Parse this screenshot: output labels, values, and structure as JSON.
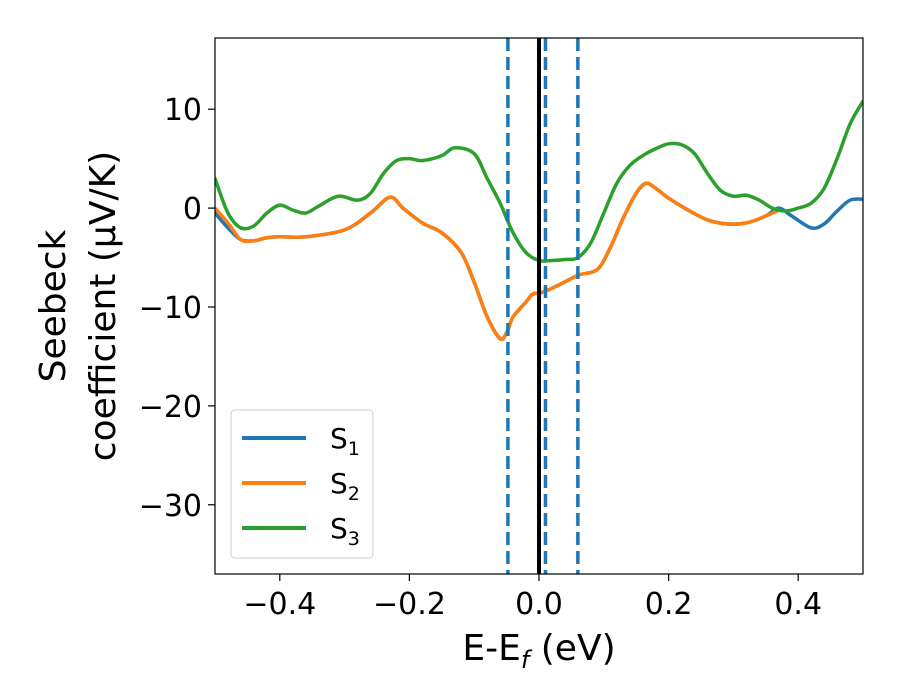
{
  "chart_data": {
    "type": "line",
    "xlabel": "E-E",
    "xlabel_sub": "f",
    "xlabel_unit": " (eV)",
    "ylabel_line1": "Seebeck",
    "ylabel_line2": "coefficient  (μV/K)",
    "xlim": [
      -0.5,
      0.5
    ],
    "ylim": [
      -37,
      17.2
    ],
    "x_ticks": [
      -0.4,
      -0.2,
      0.0,
      0.2,
      0.4
    ],
    "x_tick_labels": [
      "−0.4",
      "−0.2",
      "0.0",
      "0.2",
      "0.4"
    ],
    "y_ticks": [
      10,
      0,
      -10,
      -20,
      -30
    ],
    "y_tick_labels": [
      "10",
      "0",
      "−10",
      "−20",
      "−30"
    ],
    "legend_position": "lower-left",
    "vlines": [
      {
        "x": -0.048,
        "style": "dashed",
        "color": "#1f77b4"
      },
      {
        "x": 0.0,
        "style": "solid",
        "color": "#000000"
      },
      {
        "x": 0.01,
        "style": "dashed",
        "color": "#1f77b4"
      },
      {
        "x": 0.06,
        "style": "dashed",
        "color": "#1f77b4"
      }
    ],
    "series": [
      {
        "label_main": "S",
        "label_sub": "1",
        "color": "#1f77b4",
        "points": [
          [
            -0.5,
            -0.5
          ],
          [
            -0.48,
            -2
          ],
          [
            -0.46,
            -3.2
          ],
          [
            -0.44,
            -3.3
          ],
          [
            -0.42,
            -3
          ],
          [
            -0.4,
            -2.9
          ],
          [
            -0.36,
            -2.9
          ],
          [
            -0.3,
            -2.2
          ],
          [
            -0.26,
            -0.5
          ],
          [
            -0.23,
            1.1
          ],
          [
            -0.21,
            0
          ],
          [
            -0.18,
            -1.5
          ],
          [
            -0.15,
            -2.5
          ],
          [
            -0.12,
            -4.5
          ],
          [
            -0.1,
            -7.5
          ],
          [
            -0.08,
            -11
          ],
          [
            -0.06,
            -13.2
          ],
          [
            -0.05,
            -12.6
          ],
          [
            -0.04,
            -11
          ],
          [
            -0.02,
            -9.5
          ],
          [
            -0.01,
            -8.7
          ],
          [
            0,
            -8.6
          ],
          [
            0.01,
            -8.4
          ],
          [
            0.03,
            -7.8
          ],
          [
            0.06,
            -6.8
          ],
          [
            0.09,
            -6.2
          ],
          [
            0.11,
            -4
          ],
          [
            0.13,
            -1
          ],
          [
            0.15,
            1.5
          ],
          [
            0.165,
            2.5
          ],
          [
            0.18,
            2
          ],
          [
            0.2,
            1
          ],
          [
            0.23,
            -0.2
          ],
          [
            0.26,
            -1.2
          ],
          [
            0.29,
            -1.6
          ],
          [
            0.32,
            -1.5
          ],
          [
            0.35,
            -0.8
          ],
          [
            0.37,
            0
          ],
          [
            0.39,
            -0.8
          ],
          [
            0.42,
            -2
          ],
          [
            0.44,
            -1.6
          ],
          [
            0.46,
            -0.3
          ],
          [
            0.48,
            0.8
          ],
          [
            0.5,
            0.9
          ]
        ]
      },
      {
        "label_main": "S",
        "label_sub": "2",
        "color": "#ff7f0e",
        "points": [
          [
            -0.5,
            0
          ],
          [
            -0.48,
            -1.5
          ],
          [
            -0.46,
            -3.2
          ],
          [
            -0.44,
            -3.3
          ],
          [
            -0.42,
            -3
          ],
          [
            -0.4,
            -2.9
          ],
          [
            -0.36,
            -2.9
          ],
          [
            -0.3,
            -2.2
          ],
          [
            -0.26,
            -0.5
          ],
          [
            -0.23,
            1.1
          ],
          [
            -0.21,
            0
          ],
          [
            -0.18,
            -1.5
          ],
          [
            -0.15,
            -2.5
          ],
          [
            -0.12,
            -4.5
          ],
          [
            -0.1,
            -7.5
          ],
          [
            -0.08,
            -11
          ],
          [
            -0.06,
            -13.2
          ],
          [
            -0.05,
            -12.6
          ],
          [
            -0.04,
            -11
          ],
          [
            -0.02,
            -9.5
          ],
          [
            -0.01,
            -8.7
          ],
          [
            0,
            -8.6
          ],
          [
            0.01,
            -8.4
          ],
          [
            0.03,
            -7.8
          ],
          [
            0.06,
            -6.8
          ],
          [
            0.09,
            -6.2
          ],
          [
            0.11,
            -4
          ],
          [
            0.13,
            -1
          ],
          [
            0.15,
            1.5
          ],
          [
            0.165,
            2.5
          ],
          [
            0.18,
            2
          ],
          [
            0.2,
            1
          ],
          [
            0.23,
            -0.2
          ],
          [
            0.26,
            -1.2
          ],
          [
            0.29,
            -1.6
          ],
          [
            0.32,
            -1.5
          ],
          [
            0.35,
            -0.8
          ],
          [
            0.37,
            -0.2
          ]
        ]
      },
      {
        "label_main": "S",
        "label_sub": "3",
        "color": "#2ca02c",
        "points": [
          [
            -0.5,
            3
          ],
          [
            -0.48,
            -0.5
          ],
          [
            -0.46,
            -2
          ],
          [
            -0.44,
            -1.8
          ],
          [
            -0.42,
            -0.5
          ],
          [
            -0.4,
            0.3
          ],
          [
            -0.38,
            -0.2
          ],
          [
            -0.36,
            -0.5
          ],
          [
            -0.34,
            0.2
          ],
          [
            -0.31,
            1.2
          ],
          [
            -0.28,
            0.8
          ],
          [
            -0.26,
            1.5
          ],
          [
            -0.24,
            3.5
          ],
          [
            -0.22,
            4.8
          ],
          [
            -0.2,
            5
          ],
          [
            -0.18,
            4.8
          ],
          [
            -0.15,
            5.3
          ],
          [
            -0.13,
            6.1
          ],
          [
            -0.1,
            5.5
          ],
          [
            -0.08,
            3
          ],
          [
            -0.06,
            0.5
          ],
          [
            -0.04,
            -2.5
          ],
          [
            -0.02,
            -4.5
          ],
          [
            0,
            -5.3
          ],
          [
            0.02,
            -5.3
          ],
          [
            0.04,
            -5.2
          ],
          [
            0.06,
            -5
          ],
          [
            0.08,
            -3.5
          ],
          [
            0.1,
            -0.5
          ],
          [
            0.12,
            2.5
          ],
          [
            0.14,
            4.3
          ],
          [
            0.16,
            5.3
          ],
          [
            0.18,
            6
          ],
          [
            0.2,
            6.5
          ],
          [
            0.22,
            6.4
          ],
          [
            0.24,
            5.5
          ],
          [
            0.26,
            3.5
          ],
          [
            0.28,
            1.8
          ],
          [
            0.3,
            1.2
          ],
          [
            0.32,
            1.3
          ],
          [
            0.34,
            0.8
          ],
          [
            0.36,
            0
          ],
          [
            0.38,
            -0.3
          ],
          [
            0.4,
            0
          ],
          [
            0.42,
            0.5
          ],
          [
            0.44,
            2
          ],
          [
            0.46,
            5
          ],
          [
            0.48,
            8.5
          ],
          [
            0.5,
            10.8
          ]
        ]
      }
    ]
  }
}
